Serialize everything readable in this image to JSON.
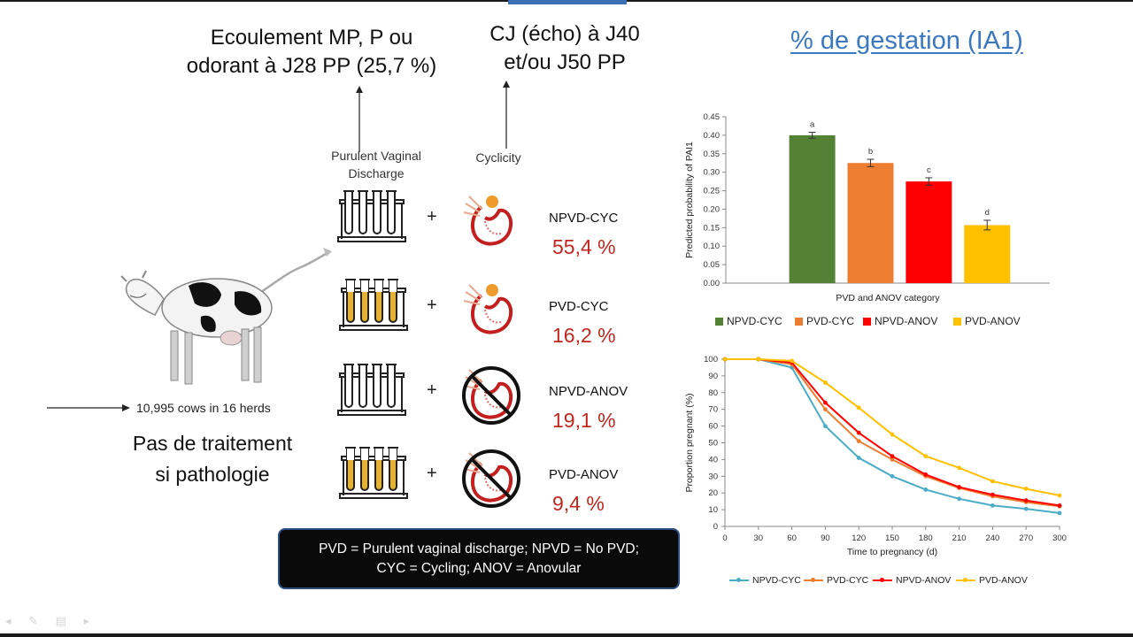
{
  "slide": {
    "title": "% de gestation (IA1)",
    "pvd_note": "Ecoulement MP, P ou\nodorant à J28 PP (25,7 %)",
    "cyc_note": "CJ (écho) à J40\net/ou J50 PP",
    "col_pvd_label": "Purulent Vaginal\nDischarge",
    "col_cyc_label": "Cyclicity",
    "cows_label": "10,995 cows in 16 herds",
    "no_treatment": "Pas de traitement\nsi pathologie",
    "plus_sign": "+",
    "legend_line1": "PVD = Purulent vaginal discharge; NPVD = No PVD;",
    "legend_line2": "CYC = Cycling; ANOV = Anovular"
  },
  "groups": [
    {
      "name": "NPVD-CYC",
      "pct": "55,4 %",
      "pvd": false,
      "cyc": true
    },
    {
      "name": "PVD-CYC",
      "pct": "16,2 %",
      "pvd": true,
      "cyc": true
    },
    {
      "name": "NPVD-ANOV",
      "pct": "19,1 %",
      "pvd": false,
      "cyc": false
    },
    {
      "name": "PVD-ANOV",
      "pct": "9,4 %",
      "pvd": true,
      "cyc": false
    }
  ],
  "colors": {
    "green": "#548235",
    "orange": "#ed7d31",
    "red": "#ff0000",
    "yellow": "#ffc000",
    "line_blue": "#4bacc6",
    "pct_red": "#c0271f",
    "title_blue": "#3b78c2",
    "tube_fill": "#e6b22a"
  },
  "icons": {
    "cow": "cow-illustration",
    "tubes": "test-tubes-icon",
    "ovary": "ovary-corpus-luteum-icon",
    "no_ovary": "prohibited-ovary-icon",
    "arrow": "arrow-icon"
  },
  "chart_data": [
    {
      "type": "bar",
      "title": "",
      "xlabel": "PVD and ANOV category",
      "ylabel": "Predicted probability of PAI1",
      "categories": [
        "NPVD-CYC",
        "PVD-CYC",
        "NPVD-ANOV",
        "PVD-ANOV"
      ],
      "values": [
        0.4,
        0.325,
        0.275,
        0.157
      ],
      "error": [
        0.008,
        0.01,
        0.01,
        0.013
      ],
      "letters": [
        "a",
        "b",
        "c",
        "d"
      ],
      "ylim": [
        0,
        0.45
      ],
      "yticks": [
        "0.00",
        "0.05",
        "0.10",
        "0.15",
        "0.20",
        "0.25",
        "0.30",
        "0.35",
        "0.40",
        "0.45"
      ],
      "legend": [
        "NPVD-CYC",
        "PVD-CYC",
        "NPVD-ANOV",
        "PVD-ANOV"
      ],
      "legend_position": "bottom",
      "grid": false
    },
    {
      "type": "line",
      "title": "",
      "xlabel": "Time to pregnancy (d)",
      "ylabel": "Proportion pregnant (%)",
      "x": [
        0,
        30,
        60,
        90,
        120,
        150,
        180,
        210,
        240,
        270,
        300
      ],
      "xlim": [
        0,
        300
      ],
      "ylim": [
        0,
        100
      ],
      "yticks": [
        "0",
        "10",
        "20",
        "30",
        "40",
        "50",
        "60",
        "70",
        "80",
        "90",
        "100"
      ],
      "series": [
        {
          "name": "NPVD-CYC",
          "values": [
            100,
            100,
            95,
            60,
            41,
            30,
            22,
            16.5,
            12.5,
            10.5,
            8
          ]
        },
        {
          "name": "PVD-CYC",
          "values": [
            100,
            100,
            97,
            70,
            51,
            40,
            30,
            23,
            18,
            14.5,
            12
          ]
        },
        {
          "name": "NPVD-ANOV",
          "values": [
            100,
            100,
            98,
            74,
            56,
            42,
            31,
            23.5,
            19,
            15.5,
            12.5
          ]
        },
        {
          "name": "PVD-ANOV",
          "values": [
            100,
            100,
            99,
            86,
            71,
            55,
            42,
            35,
            27,
            22.5,
            18.5
          ]
        }
      ],
      "legend_position": "bottom",
      "grid": false
    }
  ]
}
